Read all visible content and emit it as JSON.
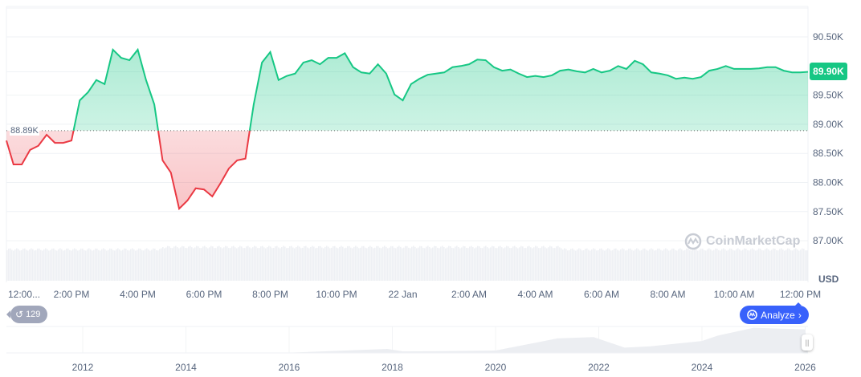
{
  "chart_data": [
    {
      "type": "area",
      "currency": "USD",
      "baseline_value": 88.89,
      "baseline_label": "88.89K",
      "current_price_label": "89.90K",
      "y_ticks": [
        "90.50K",
        "89.50K",
        "89.00K",
        "88.50K",
        "88.00K",
        "87.50K",
        "87.00K"
      ],
      "y_tick_values": [
        90.5,
        89.5,
        89.0,
        88.5,
        88.0,
        87.5,
        87.0
      ],
      "x_ticks": [
        "12:00...",
        "2:00 PM",
        "4:00 PM",
        "6:00 PM",
        "8:00 PM",
        "10:00 PM",
        "22 Jan",
        "2:00 AM",
        "4:00 AM",
        "6:00 AM",
        "8:00 AM",
        "10:00 AM",
        "12:00 PM"
      ],
      "x_tick_minutes": [
        0,
        120,
        240,
        360,
        480,
        600,
        720,
        840,
        960,
        1080,
        1200,
        1320,
        1440
      ],
      "x": [
        "12:00 PM",
        "12:15 PM",
        "12:30 PM",
        "12:45 PM",
        "1:00 PM",
        "1:15 PM",
        "1:30 PM",
        "1:45 PM",
        "2:00 PM",
        "2:15 PM",
        "2:30 PM",
        "2:45 PM",
        "3:00 PM",
        "3:15 PM",
        "3:30 PM",
        "3:45 PM",
        "4:00 PM",
        "4:15 PM",
        "4:30 PM",
        "4:45 PM",
        "5:00 PM",
        "5:15 PM",
        "5:30 PM",
        "5:45 PM",
        "6:00 PM",
        "6:15 PM",
        "6:30 PM",
        "6:45 PM",
        "7:00 PM",
        "7:15 PM",
        "7:30 PM",
        "7:45 PM",
        "8:00 PM",
        "8:15 PM",
        "8:30 PM",
        "8:45 PM",
        "9:00 PM",
        "9:15 PM",
        "9:30 PM",
        "9:45 PM",
        "10:00 PM",
        "10:15 PM",
        "10:30 PM",
        "10:45 PM",
        "11:00 PM",
        "11:15 PM",
        "11:30 PM",
        "11:45 PM",
        "12:00 AM",
        "12:15 AM",
        "12:30 AM",
        "12:45 AM",
        "1:00 AM",
        "1:15 AM",
        "1:30 AM",
        "1:45 AM",
        "2:00 AM",
        "2:15 AM",
        "2:30 AM",
        "2:45 AM",
        "3:00 AM",
        "3:15 AM",
        "3:30 AM",
        "3:45 AM",
        "4:00 AM",
        "4:15 AM",
        "4:30 AM",
        "4:45 AM",
        "5:00 AM",
        "5:15 AM",
        "5:30 AM",
        "5:45 AM",
        "6:00 AM",
        "6:15 AM",
        "6:30 AM",
        "6:45 AM",
        "7:00 AM",
        "7:15 AM",
        "7:30 AM",
        "7:45 AM",
        "8:00 AM",
        "8:15 AM",
        "8:30 AM",
        "8:45 AM",
        "9:00 AM",
        "9:15 AM",
        "9:30 AM",
        "9:45 AM",
        "10:00 AM",
        "10:15 AM",
        "10:30 AM",
        "10:45 AM",
        "11:00 AM",
        "11:15 AM",
        "11:30 AM",
        "11:45 AM",
        "12:00 PM",
        "12:15 PM"
      ],
      "values": [
        88.72,
        88.31,
        88.31,
        88.56,
        88.63,
        88.82,
        88.68,
        88.68,
        88.72,
        89.41,
        89.55,
        89.76,
        89.69,
        90.28,
        90.14,
        90.1,
        90.28,
        89.76,
        89.34,
        88.38,
        88.17,
        87.55,
        87.69,
        87.9,
        87.88,
        87.76,
        87.99,
        88.24,
        88.38,
        88.41,
        89.34,
        90.06,
        90.24,
        89.76,
        89.83,
        89.87,
        90.06,
        90.1,
        90.03,
        90.14,
        90.14,
        90.22,
        89.98,
        89.89,
        89.87,
        90.03,
        89.87,
        89.51,
        89.41,
        89.69,
        89.78,
        89.85,
        89.87,
        89.89,
        89.98,
        90.0,
        90.03,
        90.11,
        90.1,
        89.98,
        89.92,
        89.94,
        89.87,
        89.81,
        89.83,
        89.81,
        89.84,
        89.92,
        89.94,
        89.91,
        89.89,
        89.95,
        89.89,
        89.92,
        90.0,
        89.95,
        90.09,
        90.03,
        89.89,
        89.87,
        89.84,
        89.78,
        89.8,
        89.78,
        89.81,
        89.92,
        89.95,
        90.0,
        89.95,
        89.95,
        89.95,
        89.96,
        89.98,
        89.98,
        89.92,
        89.89,
        89.89,
        89.9
      ],
      "colors": {
        "up": "#16c784",
        "down": "#ea3943"
      },
      "grid": true
    },
    {
      "type": "area",
      "x_ticks": [
        "2012",
        "2014",
        "2016",
        "2018",
        "2020",
        "2022",
        "2024",
        "2026"
      ],
      "x": [
        2010.6,
        2013,
        2016,
        2017.9,
        2018.2,
        2019,
        2020,
        2021.2,
        2021.9,
        2022.5,
        2023,
        2024,
        2024.3,
        2025,
        2025.8,
        2026
      ],
      "values": [
        0,
        1,
        1,
        15,
        6,
        7,
        9,
        55,
        60,
        20,
        25,
        45,
        65,
        95,
        90,
        89
      ]
    }
  ],
  "history_badge": "129",
  "analyze_label": "Analyze",
  "watermark": "CoinMarketCap"
}
